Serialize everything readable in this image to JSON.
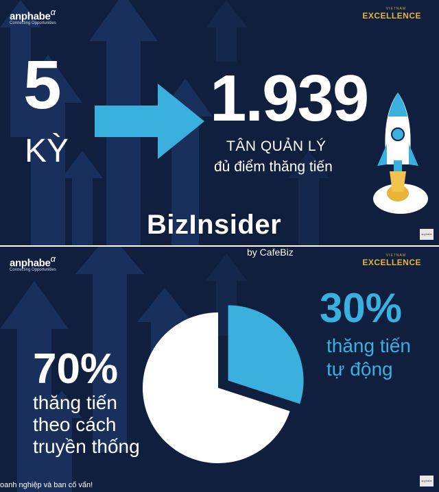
{
  "slide1": {
    "logo_left": {
      "brand": "anphabe",
      "alpha": "α",
      "tagline": "Connecting Opportunities"
    },
    "logo_right": {
      "small": "VIETNAM",
      "big": "EXCELLENCE"
    },
    "big_number": "5",
    "ky_label": "KỲ",
    "result_number": "1.939",
    "result_line1": "TÂN QUẢN LÝ",
    "result_line2": "đủ điểm thăng tiến",
    "corner_tag": "anphabe",
    "icons": [
      "arrow-right-icon",
      "rocket-icon"
    ]
  },
  "watermark": {
    "title": "BizInsider",
    "subtitle": "by CafeBiz"
  },
  "slide2": {
    "logo_left": {
      "brand": "anphabe",
      "alpha": "α",
      "tagline": "Connecting Opportunities"
    },
    "logo_right": {
      "small": "VIETNAM",
      "big": "EXCELLENCE"
    },
    "pct_auto": "30%",
    "auto_line1": "thăng tiến",
    "auto_line2": "tự động",
    "pct_traditional": "70%",
    "trad_line1": "thăng tiến",
    "trad_line2": "theo cách",
    "trad_line3": "truyền thống",
    "footer": "oanh nghiệp và ban cố vấn!",
    "corner_tag": "anphabe"
  },
  "colors": {
    "background": "#0f1f3d",
    "accent_blue": "#3ab0de",
    "gold": "#e8b53a",
    "white": "#ffffff"
  },
  "chart_data": {
    "type": "pie",
    "title": "",
    "categories": [
      "thăng tiến tự động",
      "thăng tiến theo cách truyền thống"
    ],
    "values": [
      30,
      70
    ],
    "colors": [
      "#3ab0de",
      "#ffffff"
    ],
    "exploded": [
      true,
      false
    ]
  }
}
